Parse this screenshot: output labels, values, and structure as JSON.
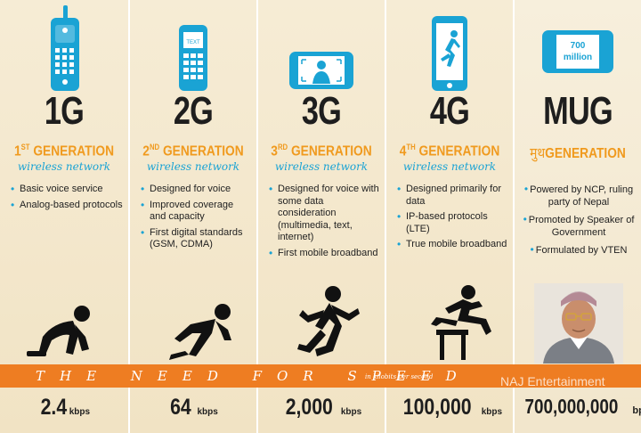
{
  "generations": [
    {
      "title": "1G",
      "heading_num": "1",
      "heading_sup": "ST",
      "heading_text": " GENERATION",
      "subtitle": "wireless network",
      "features": [
        "Basic voice service",
        "Analog-based protocols"
      ],
      "speed_value": "2.4",
      "speed_unit": "kbps",
      "device_icon": "brick-phone-icon",
      "runner_icon": "crouching-runner-icon"
    },
    {
      "title": "2G",
      "heading_num": "2",
      "heading_sup": "ND",
      "heading_text": " GENERATION",
      "subtitle": "wireless network",
      "features": [
        "Designed for voice",
        "Improved coverage and capacity",
        "First digital standards (GSM, CDMA)"
      ],
      "speed_value": "64",
      "speed_unit": "kbps",
      "device_icon": "feature-phone-icon",
      "runner_icon": "starting-runner-icon"
    },
    {
      "title": "3G",
      "heading_num": "3",
      "heading_sup": "RD",
      "heading_text": " GENERATION",
      "subtitle": "wireless network",
      "features": [
        "Designed for voice with some data consideration (multimedia, text, internet)",
        "First mobile broadband"
      ],
      "speed_value": "2,000",
      "speed_unit": "kbps",
      "device_icon": "smartphone-video-icon",
      "runner_icon": "running-person-icon"
    },
    {
      "title": "4G",
      "heading_num": "4",
      "heading_sup": "TH",
      "heading_text": " GENERATION",
      "subtitle": "wireless network",
      "features": [
        "Designed primarily for data",
        "IP-based protocols (LTE)",
        "True mobile broadband"
      ],
      "speed_value": "100,000",
      "speed_unit": "kbps",
      "device_icon": "smartphone-runner-icon",
      "runner_icon": "hurdler-icon"
    },
    {
      "title": "MUG",
      "heading_num": "मुथ",
      "heading_sup": "",
      "heading_text": "GENERATION",
      "subtitle": "",
      "features": [
        "Powered by NCP, ruling party of Nepal",
        "Promoted by Speaker of Government",
        "Formulated by VTEN"
      ],
      "speed_value": "700,000,000",
      "speed_unit": "bps",
      "device_icon": "phone-700-million-icon",
      "device_text": "700 million",
      "runner_icon": "portrait-man-icon"
    }
  ],
  "band": {
    "speed_text": "THE NEED FOR SPEED",
    "unit_note": "in kilobits per second",
    "watermark": "NAJ Entertainment"
  },
  "colors": {
    "panel_bg": "#f1e3c4",
    "accent_orange": "#ee7d22",
    "heading_orange": "#f09a1e",
    "accent_blue": "#1aa3d4",
    "text_dark": "#1e1e1e"
  }
}
